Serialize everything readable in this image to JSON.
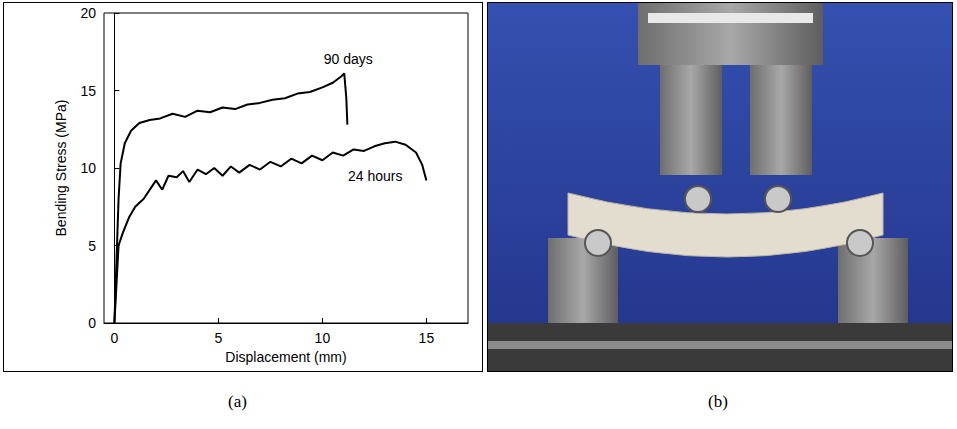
{
  "chart_data": {
    "type": "line",
    "x_label": "Displacement (mm)",
    "y_label": "Bending Stress (MPa)",
    "xlim": [
      -0.5,
      17
    ],
    "xticks": [
      0,
      5,
      10,
      15
    ],
    "ylim": [
      0,
      20
    ],
    "yticks": [
      0,
      5,
      10,
      15,
      20
    ],
    "grid": false,
    "series": [
      {
        "name": "90 days",
        "color": "#000000",
        "x": [
          0,
          0.1,
          0.2,
          0.3,
          0.5,
          0.8,
          1.2,
          1.7,
          2.2,
          2.8,
          3.4,
          4,
          4.6,
          5.2,
          5.8,
          6.4,
          7,
          7.6,
          8.2,
          8.8,
          9.4,
          10,
          10.5,
          10.9,
          11.05,
          11.15,
          11.2
        ],
        "values": [
          0,
          4,
          8,
          10.3,
          11.6,
          12.4,
          12.9,
          13.1,
          13.2,
          13.5,
          13.3,
          13.7,
          13.6,
          13.9,
          13.8,
          14.1,
          14.2,
          14.4,
          14.5,
          14.8,
          14.9,
          15.2,
          15.5,
          15.9,
          16.1,
          14.5,
          12.8
        ]
      },
      {
        "name": "24 hours",
        "color": "#000000",
        "x": [
          0,
          0.1,
          0.2,
          0.4,
          0.7,
          1,
          1.4,
          1.8,
          2,
          2.3,
          2.6,
          3,
          3.3,
          3.6,
          4,
          4.4,
          4.8,
          5.2,
          5.6,
          6,
          6.5,
          7,
          7.5,
          8,
          8.5,
          9,
          9.5,
          10,
          10.5,
          11,
          11.5,
          12,
          12.5,
          13,
          13.5,
          14,
          14.5,
          14.8,
          15
        ],
        "values": [
          0,
          2.5,
          5,
          5.8,
          6.8,
          7.5,
          8,
          8.8,
          9.2,
          8.6,
          9.5,
          9.4,
          9.8,
          9.1,
          9.9,
          9.6,
          10,
          9.5,
          10.1,
          9.7,
          10.2,
          9.9,
          10.4,
          10.1,
          10.6,
          10.3,
          10.8,
          10.5,
          11,
          10.8,
          11.2,
          11.1,
          11.4,
          11.6,
          11.7,
          11.5,
          11,
          10.2,
          9.2
        ]
      }
    ]
  },
  "panel_labels": [
    "(a)",
    "(b)"
  ]
}
